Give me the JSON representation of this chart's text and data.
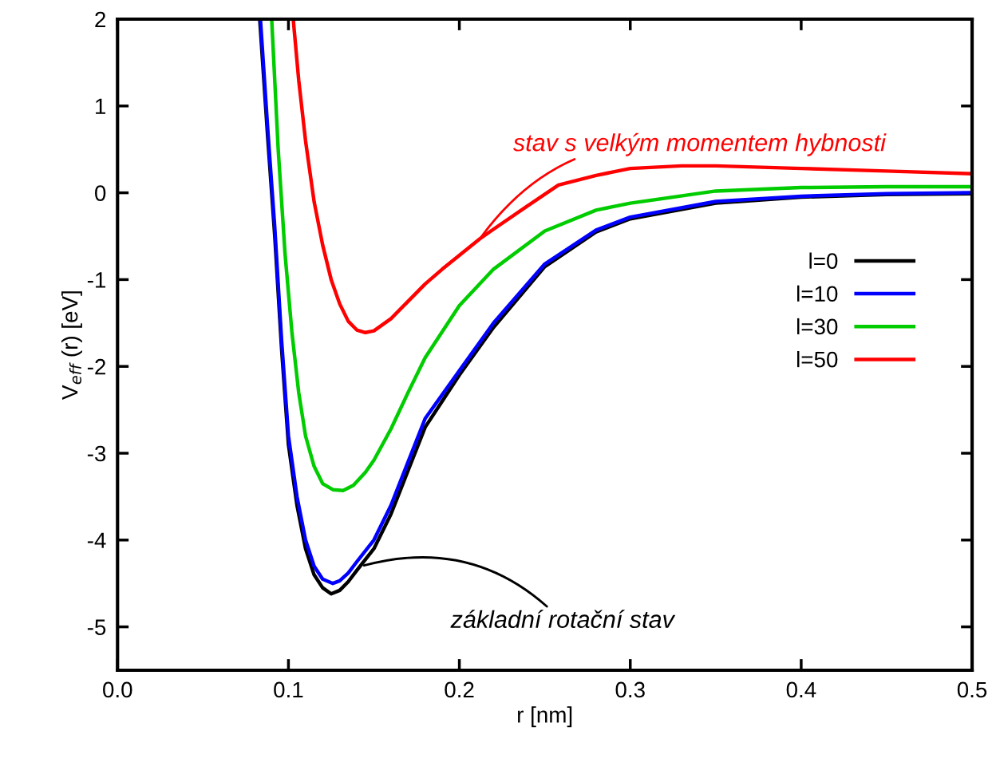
{
  "chart_data": {
    "type": "line",
    "xlabel": "r [nm]",
    "ylabel": "V$_{eff}$ (r) [eV]",
    "xlim": [
      0.0,
      0.5
    ],
    "ylim": [
      -5.5,
      2
    ],
    "xticks": [
      {
        "value": 0,
        "label": "0.0"
      },
      0.1,
      0.2,
      0.3,
      0.4,
      0.5
    ],
    "yticks": [
      -5,
      -4,
      -3,
      -2,
      -1,
      0,
      1,
      2
    ],
    "grid": false,
    "legend": "center right",
    "marker": "none",
    "line_style": "solid",
    "series": [
      {
        "name": "l=0",
        "color": "#000000",
        "x": [
          0.0832,
          0.088,
          0.092,
          0.096,
          0.1,
          0.105,
          0.11,
          0.115,
          0.12,
          0.125,
          0.13,
          0.135,
          0.14,
          0.15,
          0.16,
          0.17,
          0.18,
          0.2,
          0.22,
          0.25,
          0.28,
          0.3,
          0.35,
          0.4,
          0.45,
          0.5
        ],
        "values": [
          2,
          0.6,
          -0.5,
          -1.8,
          -2.9,
          -3.6,
          -4.1,
          -4.4,
          -4.55,
          -4.62,
          -4.58,
          -4.48,
          -4.35,
          -4.1,
          -3.7,
          -3.2,
          -2.7,
          -2.1,
          -1.55,
          -0.85,
          -0.45,
          -0.3,
          -0.12,
          -0.05,
          -0.02,
          -0.01
        ]
      },
      {
        "name": "l=10",
        "color": "#0000ff",
        "x": [
          0.0836,
          0.088,
          0.092,
          0.096,
          0.1,
          0.105,
          0.11,
          0.115,
          0.12,
          0.126,
          0.13,
          0.135,
          0.14,
          0.15,
          0.16,
          0.17,
          0.18,
          0.2,
          0.22,
          0.25,
          0.28,
          0.3,
          0.35,
          0.4,
          0.45,
          0.5
        ],
        "values": [
          2,
          0.7,
          -0.4,
          -1.7,
          -2.8,
          -3.5,
          -4.0,
          -4.3,
          -4.45,
          -4.5,
          -4.47,
          -4.38,
          -4.25,
          -4.0,
          -3.6,
          -3.1,
          -2.6,
          -2.05,
          -1.5,
          -0.82,
          -0.43,
          -0.28,
          -0.1,
          -0.04,
          -0.01,
          0.0
        ]
      },
      {
        "name": "l=30",
        "color": "#00cc00",
        "x": [
          0.0902,
          0.094,
          0.098,
          0.102,
          0.106,
          0.11,
          0.115,
          0.12,
          0.126,
          0.132,
          0.138,
          0.145,
          0.15,
          0.16,
          0.17,
          0.18,
          0.2,
          0.22,
          0.25,
          0.28,
          0.3,
          0.35,
          0.4,
          0.45,
          0.5
        ],
        "values": [
          2,
          0.5,
          -0.7,
          -1.6,
          -2.3,
          -2.8,
          -3.15,
          -3.35,
          -3.42,
          -3.43,
          -3.37,
          -3.22,
          -3.08,
          -2.72,
          -2.3,
          -1.9,
          -1.3,
          -0.88,
          -0.44,
          -0.2,
          -0.12,
          0.02,
          0.06,
          0.07,
          0.07
        ]
      },
      {
        "name": "l=50",
        "color": "#ff0000",
        "x": [
          0.1028,
          0.106,
          0.11,
          0.115,
          0.12,
          0.125,
          0.13,
          0.135,
          0.14,
          0.145,
          0.15,
          0.16,
          0.17,
          0.18,
          0.19,
          0.2,
          0.212,
          0.22,
          0.24,
          0.258,
          0.28,
          0.3,
          0.33,
          0.35,
          0.4,
          0.45,
          0.5
        ],
        "values": [
          2,
          1.3,
          0.6,
          -0.1,
          -0.6,
          -1.0,
          -1.28,
          -1.48,
          -1.58,
          -1.61,
          -1.59,
          -1.45,
          -1.25,
          -1.05,
          -0.88,
          -0.72,
          -0.53,
          -0.42,
          -0.15,
          0.09,
          0.2,
          0.28,
          0.31,
          0.31,
          0.28,
          0.25,
          0.22
        ]
      }
    ],
    "annotations": [
      {
        "text": "stav s velkým momentem hybnosti",
        "x": 0.212,
        "y": -0.53
      },
      {
        "text": "základní rotační stav",
        "x": 0.143,
        "y": -4.3
      }
    ]
  }
}
